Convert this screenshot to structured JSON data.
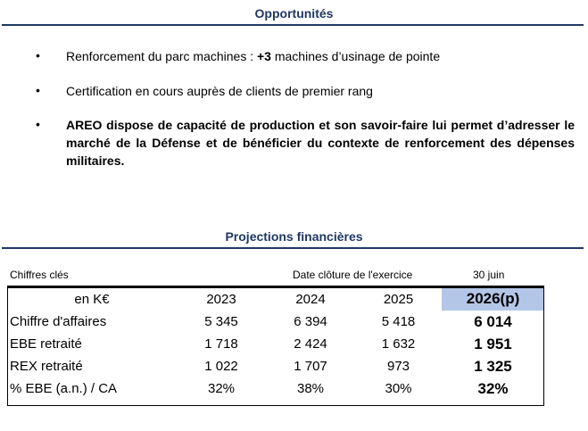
{
  "opportunities": {
    "title": "Opportunités",
    "bullet_symbol": "•",
    "item1_prefix": "Renforcement du parc machines : ",
    "item1_bold": "+3",
    "item1_suffix": " machines d’usinage de pointe",
    "item2": "Certification en cours auprès de clients de premier rang",
    "item3": "AREO dispose de capacité de production et son savoir-faire lui permet d’adresser le marché de la Défense et de bénéficier du contexte de renforcement des dépenses militaires."
  },
  "projections": {
    "title": "Projections financières",
    "key_figures_label": "Chiffres clés",
    "closing_date_label": "Date clôture de l'exercice",
    "closing_date_value": "30 juin",
    "unit": "en K€",
    "years": [
      "2023",
      "2024",
      "2025",
      "2026(p)"
    ],
    "rows": [
      {
        "label": "Chiffre d'affaires",
        "values": [
          "5 345",
          "6 394",
          "5 418",
          "6 014"
        ]
      },
      {
        "label": "EBE retraité",
        "values": [
          "1 718",
          "2 424",
          "1 632",
          "1 951"
        ]
      },
      {
        "label": "REX retraité",
        "values": [
          "1 022",
          "1 707",
          "973",
          "1 325"
        ]
      },
      {
        "label": "% EBE (a.n.) / CA",
        "values": [
          "32%",
          "38%",
          "30%",
          "32%"
        ]
      }
    ]
  }
}
